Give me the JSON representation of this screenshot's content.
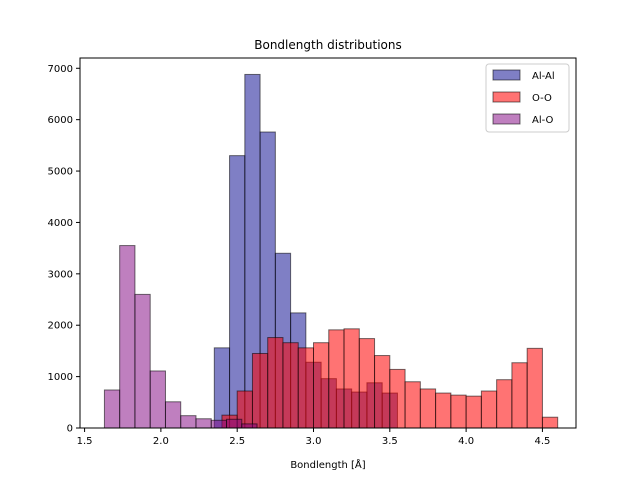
{
  "chart_data": {
    "type": "histogram",
    "title": "Bondlength distributions",
    "xlabel": "Bondlength [Å]",
    "ylabel": "",
    "xlim": [
      1.47,
      4.72
    ],
    "ylim": [
      0,
      7200
    ],
    "xticks": [
      1.5,
      2.0,
      2.5,
      3.0,
      3.5,
      4.0,
      4.5
    ],
    "xtick_labels": [
      "1.5",
      "2.0",
      "2.5",
      "3.0",
      "3.5",
      "4.0",
      "4.5"
    ],
    "yticks": [
      0,
      1000,
      2000,
      3000,
      4000,
      5000,
      6000,
      7000
    ],
    "ytick_labels": [
      "0",
      "1000",
      "2000",
      "3000",
      "4000",
      "5000",
      "6000",
      "7000"
    ],
    "legend_position": "top-right",
    "series": [
      {
        "name": "Al-Al",
        "color": "#00008b",
        "opacity": 0.5,
        "bin_start": 2.35,
        "bin_width": 0.1,
        "values": [
          1560,
          5300,
          6880,
          5760,
          3400,
          2240,
          1280,
          960,
          760,
          700,
          880,
          680
        ]
      },
      {
        "name": "O-O",
        "color": "#ff0000",
        "opacity": 0.55,
        "bin_start": 2.4,
        "bin_width": 0.1,
        "values": [
          250,
          720,
          1450,
          1760,
          1660,
          1560,
          1660,
          1910,
          1930,
          1740,
          1410,
          1140,
          900,
          760,
          680,
          640,
          620,
          720,
          940,
          1270,
          1550,
          210
        ]
      },
      {
        "name": "Al-O",
        "color": "#800080",
        "opacity": 0.5,
        "bin_start": 1.63,
        "bin_width": 0.1,
        "values": [
          740,
          3550,
          2600,
          1110,
          510,
          240,
          180,
          150,
          170,
          80
        ]
      }
    ]
  }
}
